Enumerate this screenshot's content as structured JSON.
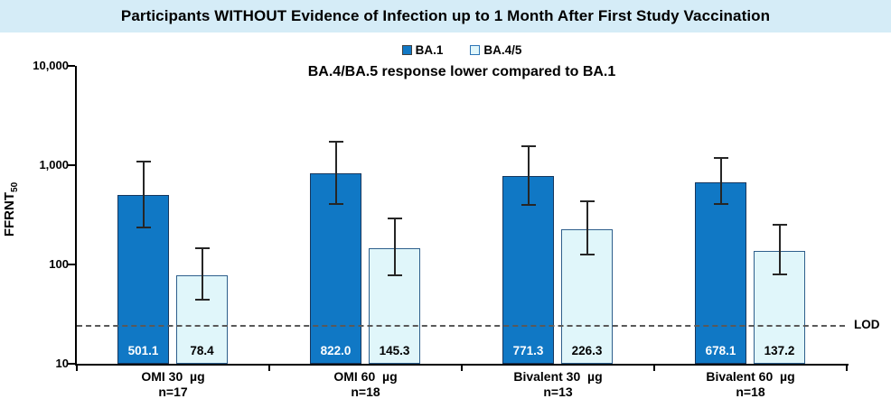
{
  "chart_data": {
    "type": "bar",
    "title": "Participants WITHOUT Evidence of Infection up to 1 Month After First Study Vaccination",
    "subtitle": "BA.4/BA.5 response lower compared to BA.1",
    "ylabel": "FFRNT",
    "ylabel_subscript": "50",
    "xlabel": "",
    "y_scale": "log",
    "ylim": [
      10,
      10000
    ],
    "y_tick_values": [
      10000,
      1000,
      100,
      10
    ],
    "y_tick_labels": [
      "10,000",
      "1,000",
      "100",
      "10"
    ],
    "grid": false,
    "legend_position": "top-center",
    "legend": [
      "BA.1",
      "BA.4/5"
    ],
    "categories": [
      "OMI 30  µg",
      "OMI 60  µg",
      "Bivalent 30  µg",
      "Bivalent 60  µg"
    ],
    "category_n": [
      "n=17",
      "n=18",
      "n=13",
      "n=18"
    ],
    "series": [
      {
        "name": "BA.1",
        "values": [
          501.1,
          822.0,
          771.3,
          678.1
        ],
        "value_labels": [
          "501.1",
          "822.0",
          "771.3",
          "678.1"
        ],
        "ci_low": [
          236,
          409,
          398,
          406
        ],
        "ci_high": [
          1090,
          1720,
          1550,
          1180
        ],
        "fill": "#1078C5",
        "border": "#17375E",
        "label_color": "#FFFFFF"
      },
      {
        "name": "BA.4/5",
        "values": [
          78.4,
          145.3,
          226.3,
          137.2
        ],
        "value_labels": [
          "78.4",
          "145.3",
          "226.3",
          "137.2"
        ],
        "ci_low": [
          44,
          78,
          126,
          80
        ],
        "ci_high": [
          146,
          290,
          433,
          251
        ],
        "fill": "#E0F6FA",
        "border": "#2E5F8C",
        "label_color": "#000000"
      }
    ],
    "lod": {
      "label": "LOD",
      "value": 24
    }
  },
  "colors": {
    "title_band_bg": "#D5ECF7",
    "axis": "#000000",
    "error_bar": "#262626",
    "lod_line": "#595959",
    "ba1_fill": "#1078C5",
    "ba1_border": "#17375E",
    "ba45_fill": "#E0F6FA",
    "ba45_border": "#2E5F8C",
    "legend_ba1_swatch_border": "#404040",
    "legend_ba45_swatch_border": "#2E75B6"
  }
}
